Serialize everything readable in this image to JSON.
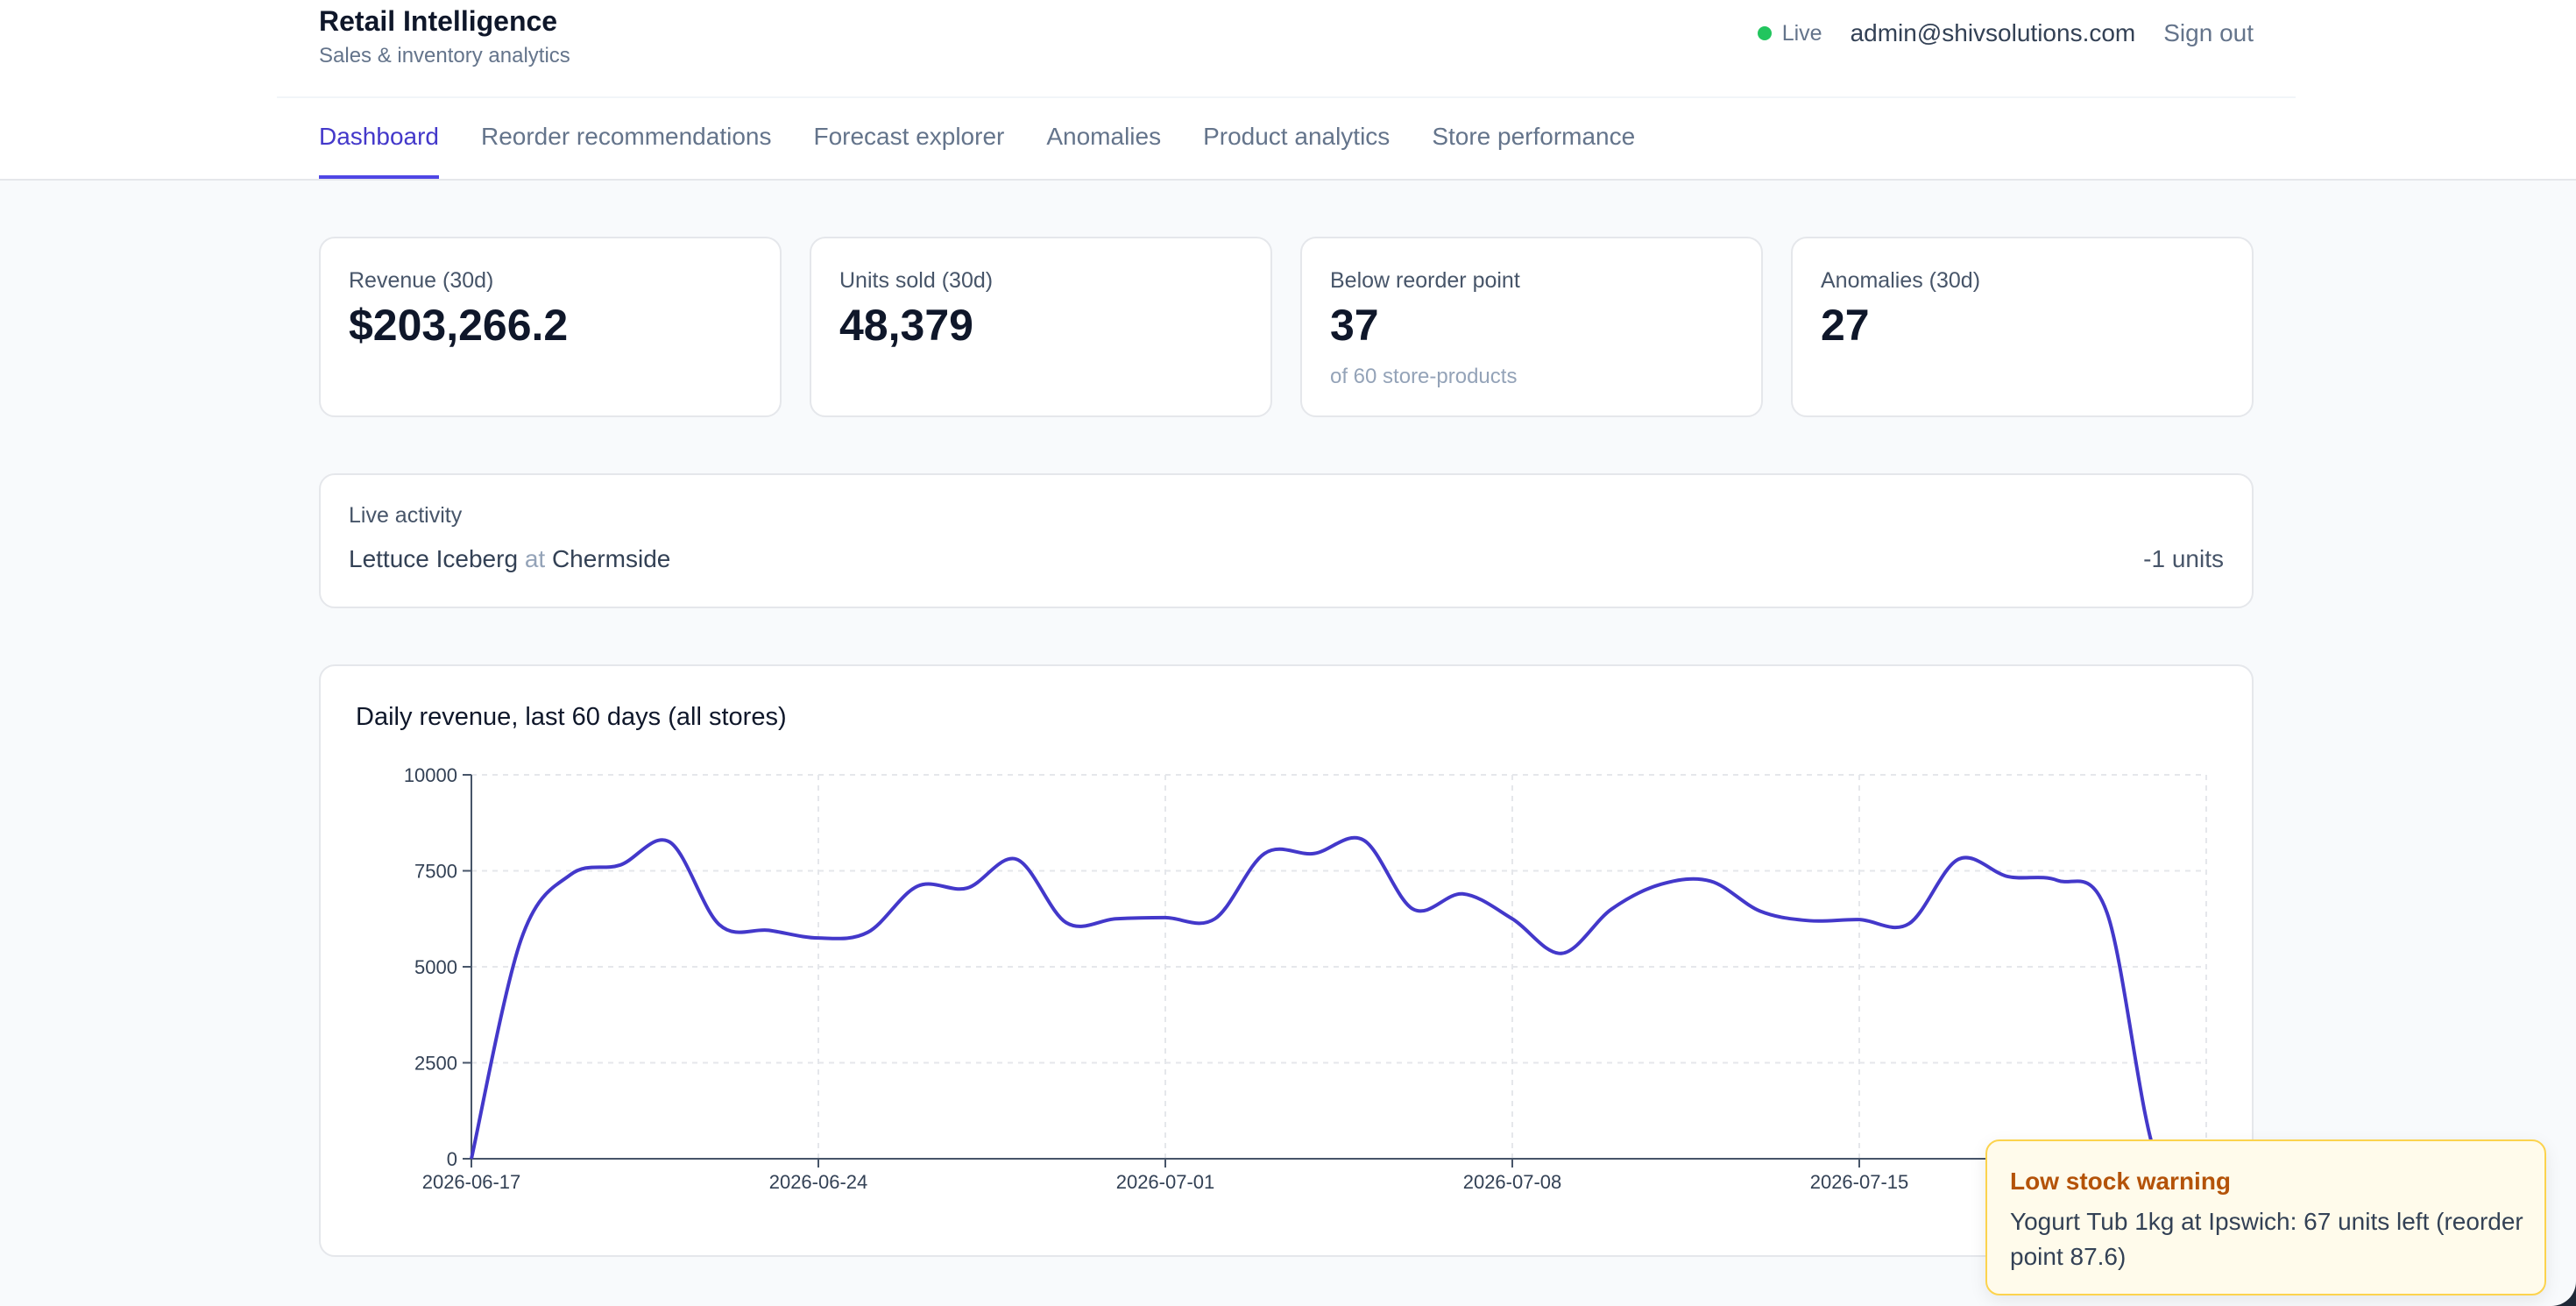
{
  "app": {
    "title": "Retail Intelligence",
    "subtitle": "Sales & inventory analytics",
    "live_label": "Live",
    "user_email": "admin@shivsolutions.com",
    "sign_out_label": "Sign out",
    "colors": {
      "accent": "#4f46e5",
      "live": "#22c55e",
      "warning": "#b45309"
    }
  },
  "nav": {
    "tabs": [
      {
        "label": "Dashboard",
        "active": true
      },
      {
        "label": "Reorder recommendations",
        "active": false
      },
      {
        "label": "Forecast explorer",
        "active": false
      },
      {
        "label": "Anomalies",
        "active": false
      },
      {
        "label": "Product analytics",
        "active": false
      },
      {
        "label": "Store performance",
        "active": false
      }
    ]
  },
  "kpis": [
    {
      "label": "Revenue (30d)",
      "value": "$203,266.2",
      "sub": ""
    },
    {
      "label": "Units sold (30d)",
      "value": "48,379",
      "sub": ""
    },
    {
      "label": "Below reorder point",
      "value": "37",
      "sub": "of 60 store-products"
    },
    {
      "label": "Anomalies (30d)",
      "value": "27",
      "sub": ""
    }
  ],
  "activity": {
    "label": "Live activity",
    "product": "Lettuce Iceberg",
    "at": "at",
    "store": "Chermside",
    "units": "-1 units"
  },
  "chart_data": {
    "type": "line",
    "title": "Daily revenue, last 60 days (all stores)",
    "xlabel": "",
    "ylabel": "",
    "ylim": [
      0,
      10000
    ],
    "y_ticks": [
      0,
      2500,
      5000,
      7500,
      10000
    ],
    "x_tick_labels": [
      "2026-06-17",
      "2026-06-24",
      "2026-07-01",
      "2026-07-08",
      "2026-07-15"
    ],
    "grid": true,
    "series_color": "#4338ca",
    "x": [
      "2026-06-17",
      "2026-06-18",
      "2026-06-19",
      "2026-06-20",
      "2026-06-21",
      "2026-06-22",
      "2026-06-23",
      "2026-06-24",
      "2026-06-25",
      "2026-06-26",
      "2026-06-27",
      "2026-06-28",
      "2026-06-29",
      "2026-06-30",
      "2026-07-01",
      "2026-07-02",
      "2026-07-03",
      "2026-07-04",
      "2026-07-05",
      "2026-07-06",
      "2026-07-07",
      "2026-07-08",
      "2026-07-09",
      "2026-07-10",
      "2026-07-11",
      "2026-07-12",
      "2026-07-13",
      "2026-07-14",
      "2026-07-15",
      "2026-07-16",
      "2026-07-17",
      "2026-07-18",
      "2026-07-19",
      "2026-07-20",
      "2026-07-21",
      "2026-07-22"
    ],
    "values": [
      0,
      5700,
      7400,
      7650,
      8250,
      6100,
      5950,
      5750,
      5900,
      7100,
      7050,
      7800,
      6150,
      6250,
      6280,
      6250,
      7950,
      7950,
      8300,
      6500,
      6900,
      6250,
      5350,
      6500,
      7150,
      7230,
      6450,
      6200,
      6230,
      6120,
      7800,
      7350,
      7250,
      6400,
      0,
      0
    ]
  },
  "toast": {
    "title": "Low stock warning",
    "message": "Yogurt Tub 1kg at Ipswich: 67 units left (reorder point 87.6)"
  }
}
